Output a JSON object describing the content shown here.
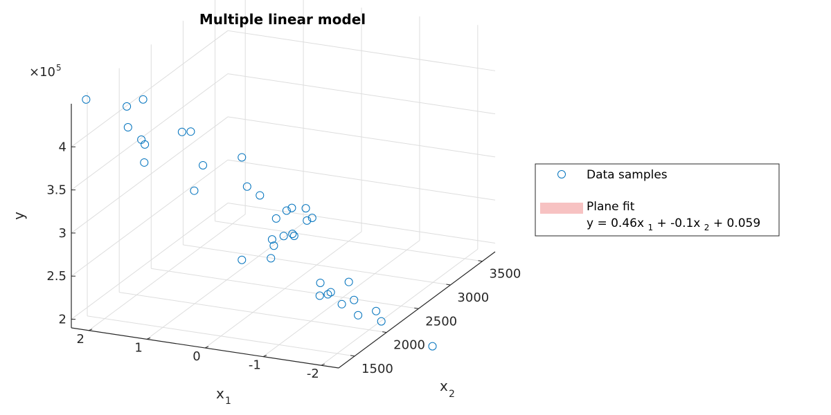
{
  "chart_data": {
    "type": "scatter",
    "title": "Multiple linear model",
    "xlabel": "x",
    "xlabel_sub": "1",
    "ylabel": "y",
    "zlabel": "x",
    "zlabel_sub": "2",
    "exponent_base": "×10",
    "exponent_power": "5",
    "x_ticks": [
      "2",
      "1",
      "0",
      "-1",
      "-2"
    ],
    "x_tick_values": [
      2,
      1,
      0,
      -1,
      -2
    ],
    "x2_ticks": [
      "1500",
      "2000",
      "2500",
      "3000",
      "3500"
    ],
    "x2_tick_values": [
      1500,
      2000,
      2500,
      3000,
      3500
    ],
    "y_ticks": [
      "2",
      "2.5",
      "3",
      "3.5",
      "4"
    ],
    "y_tick_values": [
      2,
      2.5,
      3,
      3.5,
      4
    ],
    "ylim": [
      1.9,
      4.5
    ],
    "grid": true,
    "legend_position": "right",
    "series": [
      {
        "name": "Data samples",
        "marker": "circle",
        "color": "#0072BD",
        "points": [
          [
            2.32,
            1500,
            4.41
          ],
          [
            1.62,
            1500,
            4.4
          ],
          [
            1.34,
            1500,
            4.51
          ],
          [
            1.6,
            1500,
            4.16
          ],
          [
            1.37,
            1500,
            4.04
          ],
          [
            1.31,
            1500,
            3.99
          ],
          [
            1.32,
            1500,
            3.78
          ],
          [
            0.67,
            1500,
            4.2
          ],
          [
            0.52,
            1500,
            4.22
          ],
          [
            0.31,
            1500,
            3.85
          ],
          [
            0.46,
            1500,
            3.54
          ],
          [
            -0.36,
            1500,
            4.01
          ],
          [
            -0.45,
            1500,
            3.68
          ],
          [
            -0.67,
            1500,
            3.6
          ],
          [
            -0.95,
            1500,
            3.36
          ],
          [
            -1.13,
            1500,
            3.47
          ],
          [
            -1.22,
            1500,
            3.51
          ],
          [
            -1.46,
            1500,
            3.53
          ],
          [
            -1.48,
            1500,
            3.39
          ],
          [
            -1.57,
            1500,
            3.43
          ],
          [
            -0.88,
            1500,
            3.11
          ],
          [
            -0.91,
            1500,
            3.04
          ],
          [
            -1.08,
            1500,
            3.17
          ],
          [
            -1.23,
            1500,
            3.21
          ],
          [
            -1.26,
            1500,
            3.19
          ],
          [
            -0.36,
            1500,
            2.82
          ],
          [
            -0.86,
            1500,
            2.89
          ],
          [
            -1.71,
            1500,
            2.69
          ],
          [
            -1.7,
            1500,
            2.54
          ],
          [
            -1.84,
            1500,
            2.57
          ],
          [
            -1.89,
            1500,
            2.6
          ],
          [
            -2.2,
            1500,
            2.75
          ],
          [
            -2.08,
            1500,
            2.48
          ],
          [
            -2.29,
            1500,
            2.55
          ],
          [
            -2.36,
            1500,
            2.38
          ],
          [
            -2.67,
            1500,
            2.46
          ],
          [
            -2.76,
            1500,
            2.35
          ],
          [
            -3.64,
            1500,
            2.15
          ]
        ]
      },
      {
        "name": "Plane fit",
        "color": "#F7C2C2"
      }
    ],
    "legend_equation": {
      "prefix": "y = 0.46x",
      "sub1": "1",
      "middle": " + -0.1x",
      "sub2": "2",
      "suffix": " + 0.059"
    }
  }
}
